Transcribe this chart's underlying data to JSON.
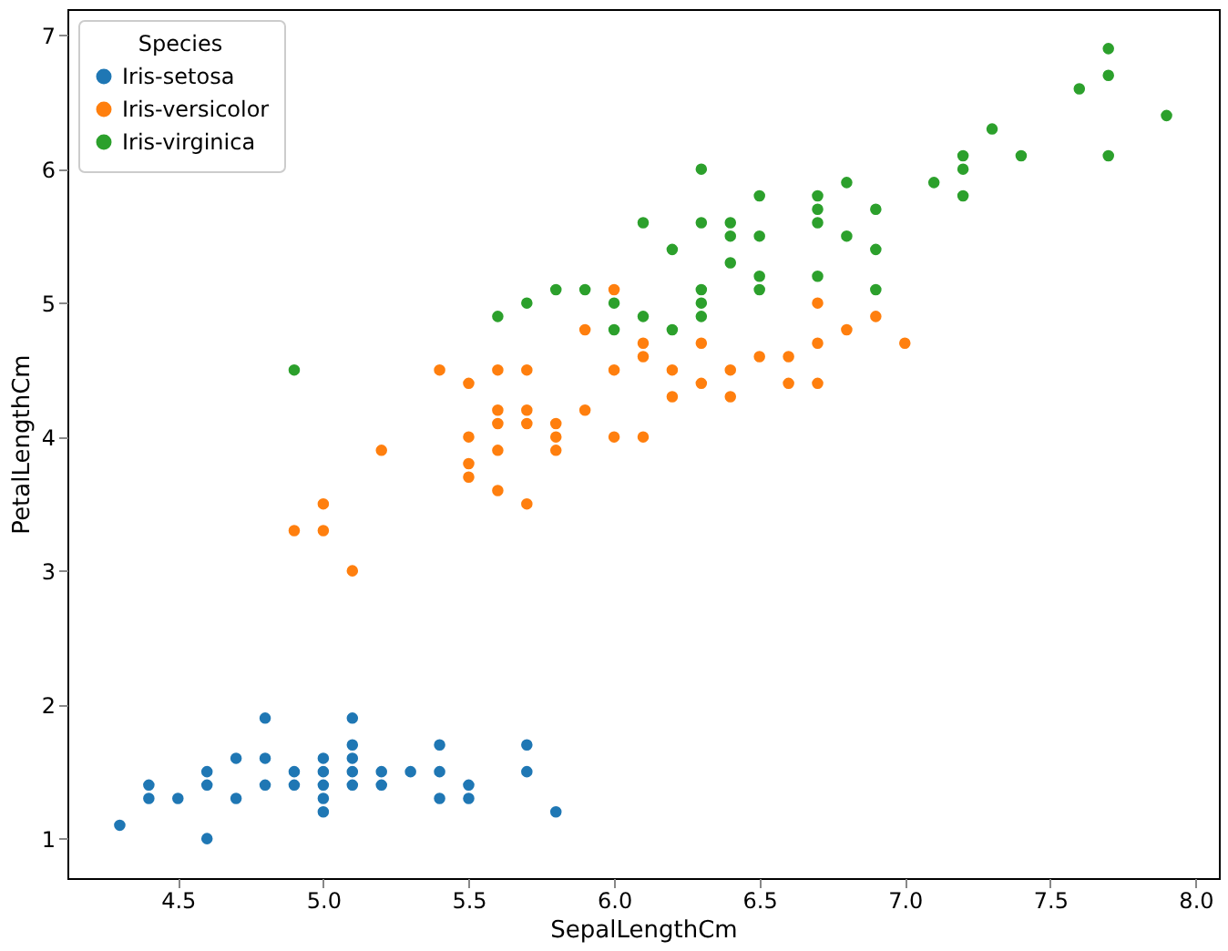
{
  "chart_data": {
    "type": "scatter",
    "xlabel": "SepalLengthCm",
    "ylabel": "PetalLengthCm",
    "legend_title": "Species",
    "legend": "top left",
    "grid": false,
    "marker": "circle",
    "xlim": [
      4.12,
      8.08
    ],
    "ylim": [
      0.705,
      7.195
    ],
    "xticks": [
      4.5,
      {
        "value": 5,
        "label": "5.0"
      },
      5.5,
      {
        "value": 6,
        "label": "6.0"
      },
      6.5,
      {
        "value": 7,
        "label": "7.0"
      },
      7.5,
      {
        "value": 8,
        "label": "8.0"
      }
    ],
    "yticks": [
      1,
      2,
      3,
      4,
      5,
      6,
      7
    ],
    "series": [
      {
        "name": "Iris-setosa",
        "color": "#1f77b4",
        "x": [
          5.1,
          4.9,
          4.7,
          4.6,
          5.0,
          5.4,
          4.6,
          5.0,
          4.4,
          4.9,
          5.4,
          4.8,
          4.8,
          4.3,
          5.8,
          5.7,
          5.4,
          5.7,
          5.1,
          5.1,
          4.6,
          4.8,
          5.0,
          5.2,
          5.2,
          4.7,
          5.5,
          5.0,
          5.5,
          4.4,
          5.0,
          4.5,
          5.1,
          5.1,
          5.3
        ],
        "values": [
          1.4,
          1.4,
          1.3,
          1.5,
          1.4,
          1.7,
          1.4,
          1.5,
          1.4,
          1.5,
          1.5,
          1.6,
          1.4,
          1.1,
          1.2,
          1.5,
          1.3,
          1.7,
          1.5,
          1.7,
          1.0,
          1.9,
          1.6,
          1.5,
          1.4,
          1.6,
          1.4,
          1.2,
          1.3,
          1.3,
          1.3,
          1.3,
          1.9,
          1.6,
          1.5
        ]
      },
      {
        "name": "Iris-versicolor",
        "color": "#ff7f0e",
        "x": [
          7.0,
          6.4,
          6.9,
          5.5,
          6.5,
          5.7,
          6.3,
          4.9,
          6.6,
          5.2,
          5.0,
          5.9,
          6.0,
          6.1,
          5.6,
          6.7,
          5.6,
          5.8,
          6.2,
          5.6,
          5.9,
          6.1,
          6.4,
          6.6,
          6.8,
          6.7,
          6.0,
          5.7,
          5.5,
          5.5,
          5.8,
          6.0,
          5.4,
          6.7,
          6.3,
          5.6,
          5.5,
          6.1,
          5.8,
          5.0,
          5.6,
          5.7,
          6.2,
          5.1,
          5.7
        ],
        "values": [
          4.7,
          4.5,
          4.9,
          4.0,
          4.6,
          4.5,
          4.7,
          3.3,
          4.6,
          3.9,
          3.5,
          4.2,
          4.0,
          4.7,
          3.6,
          4.4,
          4.5,
          4.1,
          4.5,
          3.9,
          4.8,
          4.0,
          4.3,
          4.4,
          4.8,
          5.0,
          4.5,
          3.5,
          3.8,
          3.7,
          3.9,
          5.1,
          4.5,
          4.7,
          4.4,
          4.1,
          4.4,
          4.6,
          4.0,
          3.3,
          4.2,
          4.2,
          4.3,
          3.0,
          4.1
        ]
      },
      {
        "name": "Iris-virginica",
        "color": "#2ca02c",
        "x": [
          6.3,
          5.8,
          7.1,
          6.3,
          6.5,
          7.6,
          4.9,
          7.3,
          6.7,
          7.2,
          6.5,
          6.4,
          6.8,
          5.7,
          6.5,
          7.7,
          7.7,
          6.0,
          6.9,
          5.6,
          6.3,
          7.2,
          6.2,
          6.1,
          6.4,
          7.2,
          7.4,
          7.9,
          6.3,
          6.1,
          7.7,
          6.4,
          6.0,
          6.9,
          6.7,
          6.9,
          6.8,
          6.7,
          6.7,
          6.3,
          6.5,
          6.2,
          5.9
        ],
        "values": [
          6.0,
          5.1,
          5.9,
          5.6,
          5.8,
          6.6,
          4.5,
          6.3,
          5.8,
          6.1,
          5.1,
          5.3,
          5.5,
          5.0,
          5.5,
          6.7,
          6.9,
          5.0,
          5.7,
          4.9,
          4.9,
          6.0,
          4.8,
          4.9,
          5.6,
          5.8,
          6.1,
          6.4,
          5.1,
          5.6,
          6.1,
          5.5,
          4.8,
          5.4,
          5.6,
          5.1,
          5.9,
          5.7,
          5.2,
          5.0,
          5.2,
          5.4,
          5.1
        ]
      }
    ]
  }
}
